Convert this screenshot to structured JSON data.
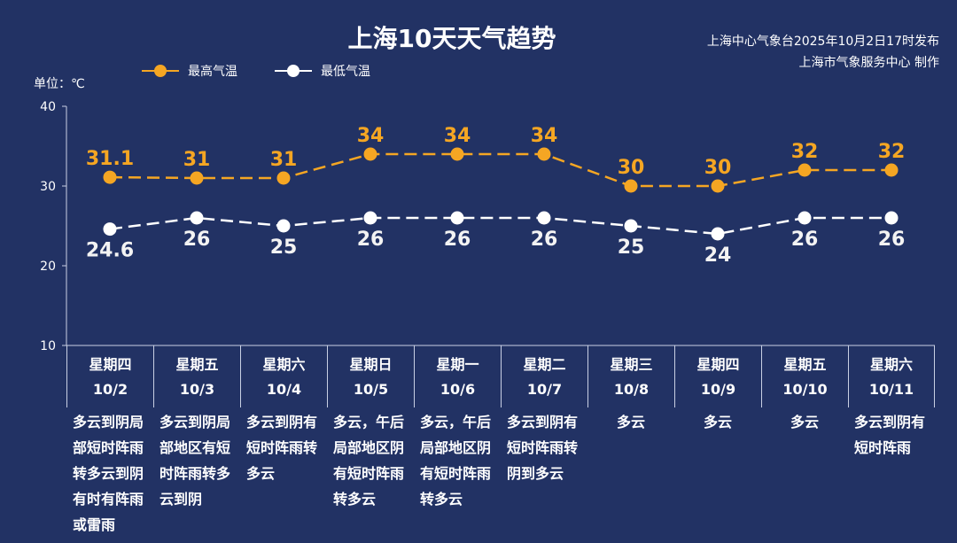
{
  "header": {
    "title": "上海10天天气趋势",
    "publish": "上海中心气象台2025年10月2日17时发布",
    "maker": "上海市气象服务中心 制作"
  },
  "unit": "单位：℃",
  "colors": {
    "background": "#223264",
    "high": "#f5a623",
    "low": "#ffffff"
  },
  "chart_data": {
    "type": "line",
    "title": "上海10天天气趋势",
    "ylabel": "单位：℃",
    "ylim": [
      10,
      40
    ],
    "yticks": [
      "10",
      "20",
      "30",
      "40"
    ],
    "legend": "top-left",
    "grid": false,
    "categories": [
      {
        "weekday": "星期四",
        "date": "10/2",
        "weather": "多云到阴局部短时阵雨转多云到阴有时有阵雨或雷雨"
      },
      {
        "weekday": "星期五",
        "date": "10/3",
        "weather": "多云到阴局部地区有短时阵雨转多云到阴"
      },
      {
        "weekday": "星期六",
        "date": "10/4",
        "weather": "多云到阴有短时阵雨转多云"
      },
      {
        "weekday": "星期日",
        "date": "10/5",
        "weather": "多云，午后局部地区阴有短时阵雨转多云"
      },
      {
        "weekday": "星期一",
        "date": "10/6",
        "weather": "多云，午后局部地区阴有短时阵雨转多云"
      },
      {
        "weekday": "星期二",
        "date": "10/7",
        "weather": "多云到阴有短时阵雨转阴到多云"
      },
      {
        "weekday": "星期三",
        "date": "10/8",
        "weather": "多云"
      },
      {
        "weekday": "星期四",
        "date": "10/9",
        "weather": "多云"
      },
      {
        "weekday": "星期五",
        "date": "10/10",
        "weather": "多云"
      },
      {
        "weekday": "星期六",
        "date": "10/11",
        "weather": "多云到阴有短时阵雨"
      }
    ],
    "series": [
      {
        "name": "最高气温",
        "values": [
          31.1,
          31,
          31,
          34,
          34,
          34,
          30,
          30,
          32,
          32
        ],
        "labels": [
          "31.1",
          "31",
          "31",
          "34",
          "34",
          "34",
          "30",
          "30",
          "32",
          "32"
        ]
      },
      {
        "name": "最低气温",
        "values": [
          24.6,
          26,
          25,
          26,
          26,
          26,
          25,
          24,
          26,
          26
        ],
        "labels": [
          "24.6",
          "26",
          "25",
          "26",
          "26",
          "26",
          "25",
          "24",
          "26",
          "26"
        ]
      }
    ]
  }
}
